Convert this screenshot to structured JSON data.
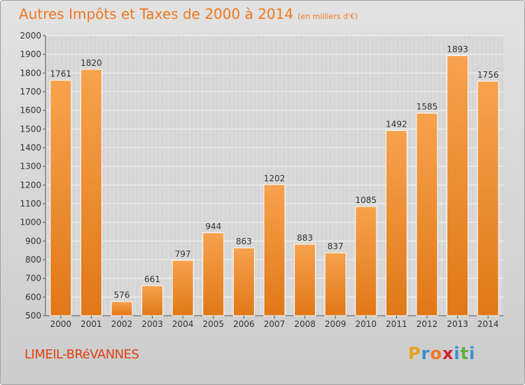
{
  "header": {
    "title": "Autres Impôts et Taxes de 2000 à 2014",
    "unit": "(en milliers d'€)"
  },
  "footer": {
    "city": "LIMEIL-BRéVANNES",
    "logo_letters": [
      "P",
      "r",
      "o",
      "x",
      "i",
      "t",
      "i"
    ],
    "logo_colors": [
      "#e8a020",
      "#3a8fd0",
      "#f07820",
      "#d02030",
      "#3a8fd0",
      "#60b040",
      "#3a8fd0"
    ]
  },
  "colors": {
    "title": "#f07820",
    "bar_light": "#f7a24d",
    "bar_dark": "#e07818",
    "city": "#e04010"
  },
  "chart_data": {
    "type": "bar",
    "title": "Autres Impôts et Taxes de 2000 à 2014",
    "categories": [
      "2000",
      "2001",
      "2002",
      "2003",
      "2004",
      "2005",
      "2006",
      "2007",
      "2008",
      "2009",
      "2010",
      "2011",
      "2012",
      "2013",
      "2014"
    ],
    "values": [
      1761,
      1820,
      576,
      661,
      797,
      944,
      863,
      1202,
      883,
      837,
      1085,
      1492,
      1585,
      1893,
      1756
    ],
    "data_labels": [
      "1761",
      "1820",
      "576",
      "661",
      "797",
      "944",
      "863",
      "1202",
      "883",
      "837",
      "1085",
      "1492",
      "1585",
      "1893",
      "1756"
    ],
    "yticks": [
      "500",
      "600",
      "700",
      "800",
      "900",
      "1000",
      "1100",
      "1200",
      "1300",
      "1400",
      "1500",
      "1600",
      "1700",
      "1800",
      "1900",
      "2000"
    ],
    "ylim": [
      500,
      2000
    ],
    "grid": true,
    "xlabel": "",
    "ylabel": ""
  }
}
